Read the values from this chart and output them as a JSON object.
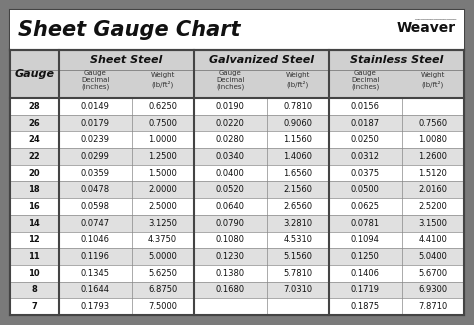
{
  "title": "Sheet Gauge Chart",
  "bg_outer": "#7a7a7a",
  "bg_inner": "#ffffff",
  "header_section_bg": "#d0d0d0",
  "row_alt_bg": "#e0e0e0",
  "row_white_bg": "#ffffff",
  "border_thick": "#444444",
  "border_thin": "#888888",
  "gauges": [
    28,
    26,
    24,
    22,
    20,
    18,
    16,
    14,
    12,
    11,
    10,
    8,
    7
  ],
  "sheet_steel_decimal": [
    "0.0149",
    "0.0179",
    "0.0239",
    "0.0299",
    "0.0359",
    "0.0478",
    "0.0598",
    "0.0747",
    "0.1046",
    "0.1196",
    "0.1345",
    "0.1644",
    "0.1793"
  ],
  "sheet_steel_weight": [
    "0.6250",
    "0.7500",
    "1.0000",
    "1.2500",
    "1.5000",
    "2.0000",
    "2.5000",
    "3.1250",
    "4.3750",
    "5.0000",
    "5.6250",
    "6.8750",
    "7.5000"
  ],
  "galv_decimal": [
    "0.0190",
    "0.0220",
    "0.0280",
    "0.0340",
    "0.0400",
    "0.0520",
    "0.0640",
    "0.0790",
    "0.1080",
    "0.1230",
    "0.1380",
    "0.1680",
    ""
  ],
  "galv_weight": [
    "0.7810",
    "0.9060",
    "1.1560",
    "1.4060",
    "1.6560",
    "2.1560",
    "2.6560",
    "3.2810",
    "4.5310",
    "5.1560",
    "5.7810",
    "7.0310",
    ""
  ],
  "stain_decimal": [
    "0.0156",
    "0.0187",
    "0.0250",
    "0.0312",
    "0.0375",
    "0.0500",
    "0.0625",
    "0.0781",
    "0.1094",
    "0.1250",
    "0.1406",
    "0.1719",
    "0.1875"
  ],
  "stain_weight": [
    "",
    "0.7560",
    "1.0080",
    "1.2600",
    "1.5120",
    "2.0160",
    "2.5200",
    "3.1500",
    "4.4100",
    "5.0400",
    "5.6700",
    "6.9300",
    "7.8710"
  ],
  "figw": 4.74,
  "figh": 3.25,
  "dpi": 100
}
